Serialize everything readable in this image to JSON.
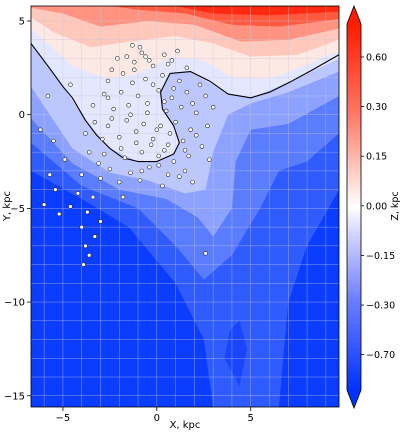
{
  "chart_data": {
    "type": "heatmap",
    "title": "",
    "xlabel": "X, kpc",
    "ylabel": "Y, kpc",
    "xlim": [
      -6.7,
      9.7
    ],
    "ylim": [
      -15.6,
      5.8
    ],
    "xticks": [
      -5,
      0,
      5
    ],
    "yticks": [
      5,
      0,
      -5,
      -10,
      -15
    ],
    "grid": true,
    "colorbar": {
      "label": "Z, kpc",
      "ticks": [
        "0.60",
        "0.30",
        "0.15",
        "0.00",
        "-0.15",
        "-0.30",
        "-0.70"
      ],
      "range": [
        -0.85,
        0.7
      ],
      "extend": "both",
      "colormap": "bwr",
      "low_color": "#0033ff",
      "mid_color": "#ffffff",
      "high_color": "#ff1a00"
    },
    "zero_contour": [
      [
        -6.7,
        3.8
      ],
      [
        -5.8,
        2.6
      ],
      [
        -5.0,
        1.5
      ],
      [
        -4.5,
        0.9
      ],
      [
        -3.8,
        -0.3
      ],
      [
        -3.2,
        -1.1
      ],
      [
        -2.5,
        -1.8
      ],
      [
        -1.8,
        -2.3
      ],
      [
        -1.0,
        -2.5
      ],
      [
        0.0,
        -2.5
      ],
      [
        0.9,
        -2.1
      ],
      [
        1.2,
        -1.5
      ],
      [
        0.9,
        -0.6
      ],
      [
        0.3,
        0.3
      ],
      [
        0.2,
        1.2
      ],
      [
        0.7,
        2.2
      ],
      [
        1.8,
        2.3
      ],
      [
        2.8,
        1.8
      ],
      [
        3.8,
        1.1
      ],
      [
        5.0,
        0.9
      ],
      [
        6.0,
        1.2
      ],
      [
        7.2,
        1.8
      ],
      [
        8.3,
        2.4
      ],
      [
        9.7,
        3.2
      ]
    ],
    "points": [
      [
        -1.3,
        3.7
      ],
      [
        -0.8,
        3.3
      ],
      [
        0.4,
        3.2
      ],
      [
        -1.6,
        3.1
      ],
      [
        -0.9,
        3.6
      ],
      [
        -1.2,
        2.8
      ],
      [
        -0.4,
        2.9
      ],
      [
        0.6,
        2.7
      ],
      [
        1.6,
        2.5
      ],
      [
        -2.4,
        2.4
      ],
      [
        -1.8,
        2.2
      ],
      [
        -0.2,
        2.6
      ],
      [
        0.8,
        2.9
      ],
      [
        -2.6,
        1.8
      ],
      [
        -1.3,
        1.7
      ],
      [
        -0.6,
        1.9
      ],
      [
        0.3,
        2.1
      ],
      [
        1.2,
        1.8
      ],
      [
        2.3,
        1.6
      ],
      [
        -2.8,
        1.1
      ],
      [
        -1.9,
        1.2
      ],
      [
        -1.0,
        1.0
      ],
      [
        0.1,
        1.3
      ],
      [
        0.8,
        0.9
      ],
      [
        1.6,
        1.2
      ],
      [
        2.6,
        1.0
      ],
      [
        -3.4,
        0.5
      ],
      [
        -2.3,
        0.3
      ],
      [
        -1.5,
        0.5
      ],
      [
        -0.5,
        0.6
      ],
      [
        0.5,
        0.2
      ],
      [
        1.3,
        0.4
      ],
      [
        2.1,
        0.1
      ],
      [
        3.0,
        0.4
      ],
      [
        -3.3,
        -0.4
      ],
      [
        -2.6,
        -0.6
      ],
      [
        -1.6,
        -0.3
      ],
      [
        -0.7,
        -0.5
      ],
      [
        0.2,
        -0.6
      ],
      [
        1.0,
        -0.4
      ],
      [
        1.8,
        -0.8
      ],
      [
        2.7,
        -0.6
      ],
      [
        -3.8,
        -1.0
      ],
      [
        -2.9,
        -1.3
      ],
      [
        -2.0,
        -1.2
      ],
      [
        -1.1,
        -1.5
      ],
      [
        -0.2,
        -1.3
      ],
      [
        0.6,
        -1.6
      ],
      [
        1.4,
        -1.4
      ],
      [
        2.4,
        -1.7
      ],
      [
        -3.6,
        -2.0
      ],
      [
        -2.8,
        -2.1
      ],
      [
        -1.7,
        -2.3
      ],
      [
        -0.8,
        -2.0
      ],
      [
        0.1,
        -2.2
      ],
      [
        0.9,
        -2.5
      ],
      [
        1.7,
        -2.2
      ],
      [
        2.8,
        -2.4
      ],
      [
        -2.5,
        -2.9
      ],
      [
        -1.4,
        -3.1
      ],
      [
        -0.4,
        -2.8
      ],
      [
        0.6,
        -3.2
      ],
      [
        1.5,
        -3.0
      ],
      [
        -4.0,
        -3.2
      ],
      [
        -3.0,
        -3.4
      ],
      [
        -2.0,
        -3.6
      ],
      [
        -0.9,
        -3.5
      ],
      [
        0.3,
        -3.8
      ],
      [
        1.9,
        -3.6
      ],
      [
        -4.2,
        -4.2
      ],
      [
        -3.4,
        -4.4
      ],
      [
        -4.6,
        -4.9
      ],
      [
        -3.7,
        -5.2
      ],
      [
        -3.0,
        -5.7
      ],
      [
        -4.0,
        -6.0
      ],
      [
        -3.3,
        -6.5
      ],
      [
        -3.8,
        -7.0
      ],
      [
        -3.6,
        -7.5
      ],
      [
        -3.9,
        -8.0
      ],
      [
        -5.7,
        -3.2
      ],
      [
        -5.4,
        -4.0
      ],
      [
        -6.0,
        -4.8
      ],
      [
        -5.2,
        -5.3
      ],
      [
        -4.9,
        -2.4
      ],
      [
        -5.5,
        -1.4
      ],
      [
        -5.8,
        1.0
      ],
      [
        -6.2,
        -0.8
      ],
      [
        -4.6,
        1.6
      ],
      [
        -1.8,
        -4.4
      ],
      [
        2.6,
        -7.4
      ],
      [
        -0.3,
        -1.6
      ],
      [
        0.0,
        -0.8
      ],
      [
        -0.5,
        0.1
      ],
      [
        0.4,
        0.7
      ],
      [
        -1.2,
        2.4
      ],
      [
        -0.6,
        3.1
      ],
      [
        1.1,
        3.4
      ],
      [
        -2.1,
        3.0
      ],
      [
        -0.2,
        1.6
      ],
      [
        -1.4,
        0.0
      ],
      [
        0.7,
        -1.0
      ],
      [
        1.5,
        -1.9
      ],
      [
        -2.4,
        -0.2
      ],
      [
        -3.1,
        -2.6
      ],
      [
        0.1,
        -2.7
      ],
      [
        1.2,
        -3.3
      ],
      [
        -1.9,
        -1.8
      ],
      [
        2.1,
        -1.1
      ],
      [
        -0.8,
        -3.0
      ],
      [
        0.9,
        1.4
      ],
      [
        -2.6,
        0.9
      ],
      [
        1.9,
        0.6
      ],
      [
        -1.1,
        -0.9
      ],
      [
        0.4,
        -1.9
      ]
    ]
  }
}
